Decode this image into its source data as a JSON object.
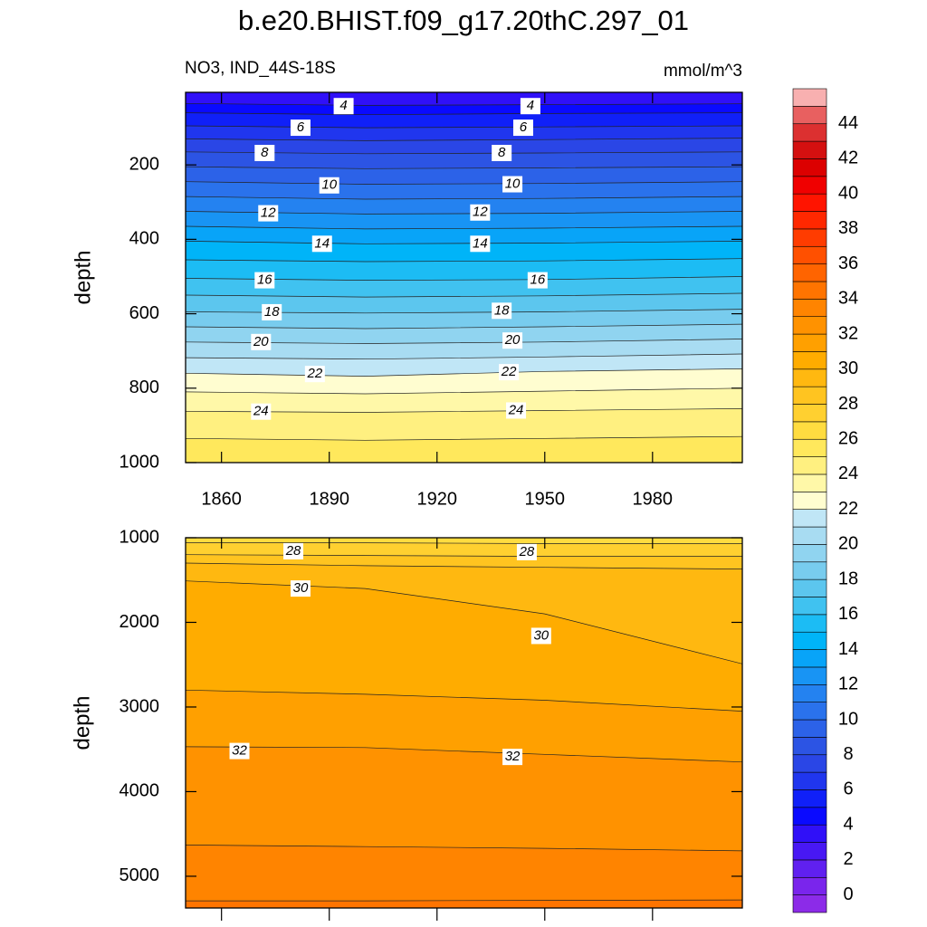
{
  "chart_data": {
    "type": "contour",
    "title": "b.e20.BHIST.f09_g17.20thC.297_01",
    "subtitle_left": "NO3, IND_44S-18S",
    "subtitle_right": "mmol/m^3",
    "x": [
      1850,
      1900,
      1950,
      2005
    ],
    "xlim": [
      1850,
      2005
    ],
    "xticks": [
      1860,
      1890,
      1920,
      1950,
      1980
    ],
    "panels": [
      {
        "ylabel": "depth",
        "ylim": [
          1000,
          5
        ],
        "yticks": [
          200,
          400,
          600,
          800,
          1000
        ],
        "show_xtick_labels": true,
        "contours": [
          {
            "level": 4,
            "depths": [
              35,
              40,
              38,
              36
            ]
          },
          {
            "level": 5,
            "depths": [
              60,
              65,
              62,
              60
            ]
          },
          {
            "level": 6,
            "depths": [
              95,
              100,
              98,
              95
            ]
          },
          {
            "level": 7,
            "depths": [
              130,
              135,
              132,
              128
            ]
          },
          {
            "level": 8,
            "depths": [
              165,
              170,
              168,
              165
            ]
          },
          {
            "level": 9,
            "depths": [
              205,
              210,
              208,
              205
            ]
          },
          {
            "level": 10,
            "depths": [
              245,
              252,
              250,
              245
            ]
          },
          {
            "level": 11,
            "depths": [
              285,
              292,
              290,
              285
            ]
          },
          {
            "level": 12,
            "depths": [
              325,
              332,
              330,
              325
            ]
          },
          {
            "level": 13,
            "depths": [
              365,
              372,
              370,
              365
            ]
          },
          {
            "level": 14,
            "depths": [
              405,
              412,
              410,
              405
            ]
          },
          {
            "level": 15,
            "depths": [
              455,
              460,
              458,
              452
            ]
          },
          {
            "level": 16,
            "depths": [
              505,
              510,
              508,
              500
            ]
          },
          {
            "level": 17,
            "depths": [
              550,
              555,
              552,
              545
            ]
          },
          {
            "level": 18,
            "depths": [
              595,
              598,
              595,
              588
            ]
          },
          {
            "level": 19,
            "depths": [
              635,
              640,
              635,
              628
            ]
          },
          {
            "level": 20,
            "depths": [
              676,
              680,
              676,
              668
            ]
          },
          {
            "level": 21,
            "depths": [
              718,
              722,
              716,
              708
            ]
          },
          {
            "level": 22,
            "depths": [
              760,
              768,
              755,
              748
            ]
          },
          {
            "level": 23,
            "depths": [
              810,
              815,
              808,
              800
            ]
          },
          {
            "level": 24,
            "depths": [
              862,
              865,
              860,
              855
            ]
          },
          {
            "level": 25,
            "depths": [
              935,
              940,
              935,
              930
            ]
          }
        ],
        "labels": [
          {
            "level": 4,
            "x": 1894,
            "depth": 42
          },
          {
            "level": 4,
            "x": 1946,
            "depth": 42
          },
          {
            "level": 6,
            "x": 1882,
            "depth": 100
          },
          {
            "level": 6,
            "x": 1944,
            "depth": 100
          },
          {
            "level": 8,
            "x": 1872,
            "depth": 168
          },
          {
            "level": 8,
            "x": 1938,
            "depth": 168
          },
          {
            "level": 10,
            "x": 1890,
            "depth": 255
          },
          {
            "level": 10,
            "x": 1941,
            "depth": 252
          },
          {
            "level": 12,
            "x": 1873,
            "depth": 330
          },
          {
            "level": 12,
            "x": 1932,
            "depth": 328
          },
          {
            "level": 14,
            "x": 1888,
            "depth": 412
          },
          {
            "level": 14,
            "x": 1932,
            "depth": 412
          },
          {
            "level": 16,
            "x": 1872,
            "depth": 510
          },
          {
            "level": 16,
            "x": 1948,
            "depth": 510
          },
          {
            "level": 18,
            "x": 1874,
            "depth": 596
          },
          {
            "level": 18,
            "x": 1938,
            "depth": 592
          },
          {
            "level": 20,
            "x": 1871,
            "depth": 676
          },
          {
            "level": 20,
            "x": 1941,
            "depth": 672
          },
          {
            "level": 22,
            "x": 1886,
            "depth": 762
          },
          {
            "level": 22,
            "x": 1940,
            "depth": 757
          },
          {
            "level": 24,
            "x": 1871,
            "depth": 863
          },
          {
            "level": 24,
            "x": 1942,
            "depth": 860
          }
        ]
      },
      {
        "ylabel": "depth",
        "ylim": [
          5375,
          1000
        ],
        "yticks": [
          1000,
          2000,
          3000,
          4000,
          5000
        ],
        "show_xtick_labels": false,
        "contours": [
          {
            "level": 27,
            "depths": [
              1060,
              1060,
              1070,
              1070
            ]
          },
          {
            "level": 28,
            "depths": [
              1200,
              1210,
              1220,
              1220
            ]
          },
          {
            "level": 29,
            "depths": [
              1300,
              1330,
              1350,
              1370
            ]
          },
          {
            "level": 30,
            "depths": [
              1510,
              1600,
              1900,
              2490
            ]
          },
          {
            "level": 31,
            "depths": [
              2800,
              2850,
              2920,
              3050
            ]
          },
          {
            "level": 32,
            "depths": [
              3470,
              3480,
              3560,
              3650
            ]
          },
          {
            "level": 33,
            "depths": [
              4630,
              4650,
              4670,
              4700
            ]
          },
          {
            "level": 34,
            "depths": [
              5290,
              5290,
              5285,
              5280
            ]
          }
        ],
        "labels": [
          {
            "level": 28,
            "x": 1880,
            "depth": 1160
          },
          {
            "level": 28,
            "x": 1945,
            "depth": 1170
          },
          {
            "level": 30,
            "x": 1882,
            "depth": 1600
          },
          {
            "level": 30,
            "x": 1949,
            "depth": 2160
          },
          {
            "level": 32,
            "x": 1865,
            "depth": 3520
          },
          {
            "level": 32,
            "x": 1941,
            "depth": 3590
          }
        ]
      }
    ],
    "colorbar": {
      "ticks": [
        0,
        2,
        4,
        6,
        8,
        10,
        12,
        14,
        16,
        18,
        20,
        22,
        24,
        26,
        28,
        30,
        32,
        34,
        36,
        38,
        40,
        42,
        44
      ],
      "colors": [
        "#8c2be8",
        "#7a25ec",
        "#6020f0",
        "#4818f4",
        "#3010f8",
        "#0a0aff",
        "#1020f8",
        "#2036ee",
        "#2a46e6",
        "#2c54e4",
        "#2c62e8",
        "#2a72ec",
        "#2482f0",
        "#1894f4",
        "#08a4f8",
        "#00b4f8",
        "#1cbcf4",
        "#40c2f0",
        "#5cc6ee",
        "#78ccee",
        "#90d4f0",
        "#a8dcf2",
        "#c0e6f6",
        "#fffdd0",
        "#fff8a8",
        "#fff080",
        "#ffe85c",
        "#ffdc40",
        "#ffd030",
        "#ffc420",
        "#ffb810",
        "#ffac00",
        "#ffa000",
        "#ff9200",
        "#ff8400",
        "#ff7400",
        "#ff6400",
        "#ff5000",
        "#ff3c00",
        "#ff2800",
        "#ff1400",
        "#f00000",
        "#dc0000",
        "#d41010",
        "#dc3030",
        "#e86060",
        "#f8b0b0"
      ]
    }
  }
}
